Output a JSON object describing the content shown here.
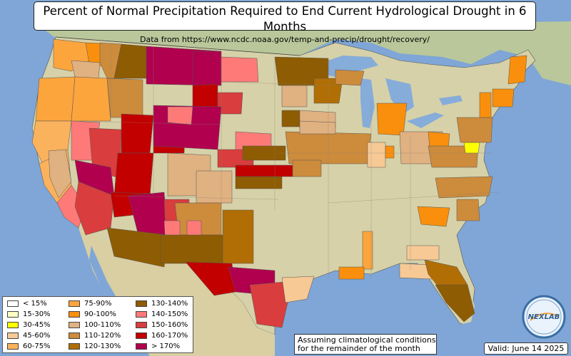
{
  "title": "Percent of Normal Precipitation Required to End Current Hydrological Drought in 6 Months",
  "subtitle": "Data from https://www.ncdc.noaa.gov/temp-and-precip/drought/recovery/",
  "note_line1": "Assuming climatological conditions",
  "note_line2": "for the remainder of the month",
  "valid": "Valid: June 14 2025",
  "logo_text": "NEXLAB",
  "colors": {
    "ocean": "#7fa6d6",
    "land": "#d4cfa6",
    "land_light": "#e6e3c3",
    "land_green": "#b9c79a",
    "lake": "#86acd9"
  },
  "legend": [
    {
      "label": "< 15%",
      "color": "#ffffff"
    },
    {
      "label": "15-30%",
      "color": "#ffffc4"
    },
    {
      "label": "30-45%",
      "color": "#ffff00"
    },
    {
      "label": "45-60%",
      "color": "#f6c995"
    },
    {
      "label": "60-75%",
      "color": "#fbb25c"
    },
    {
      "label": "75-90%",
      "color": "#fca53d"
    },
    {
      "label": "90-100%",
      "color": "#f98f0c"
    },
    {
      "label": "100-110%",
      "color": "#e0b181"
    },
    {
      "label": "110-120%",
      "color": "#cd8b3c"
    },
    {
      "label": "120-130%",
      "color": "#b16e05"
    },
    {
      "label": "130-140%",
      "color": "#8e5c02"
    },
    {
      "label": "140-150%",
      "color": "#fe7a79"
    },
    {
      "label": "150-160%",
      "color": "#d93d3d"
    },
    {
      "label": "160-170%",
      "color": "#c20000"
    },
    {
      "label": "> 170%",
      "color": "#b0004e"
    }
  ]
}
